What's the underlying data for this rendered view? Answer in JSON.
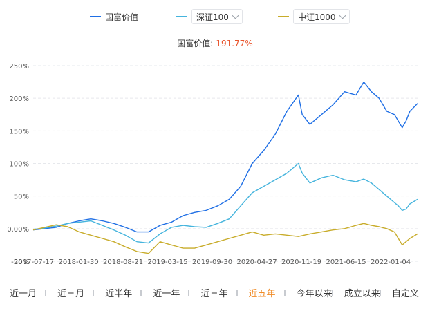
{
  "legend": {
    "main": {
      "label": "国富价值",
      "color": "#1f6fe5"
    },
    "compare1": {
      "label": "深证100",
      "color": "#45b4dd"
    },
    "compare2": {
      "label": "中证1000",
      "color": "#c8ac2a"
    }
  },
  "summary": {
    "label": "国富价值:",
    "value": "191.77%"
  },
  "range_tabs": [
    "近一月",
    "近三月",
    "近半年",
    "近一年",
    "近三年",
    "近五年",
    "今年以来",
    "成立以来",
    "自定义"
  ],
  "active_tab": "近五年",
  "chart_data": {
    "type": "line",
    "x_ticks": [
      "2017-07-17",
      "2018-01-30",
      "2018-08-21",
      "2019-03-15",
      "2019-09-30",
      "2020-04-27",
      "2020-11-19",
      "2021-06-15",
      "2022-01-04"
    ],
    "y_ticks": [
      "250%",
      "200%",
      "150%",
      "100%",
      "50%",
      "0.00%",
      "-50%"
    ],
    "ylim": [
      -50,
      250
    ],
    "grid": true,
    "series": [
      {
        "name": "国富价值",
        "color": "#1f6fe5",
        "points": [
          [
            0,
            -2
          ],
          [
            3,
            0
          ],
          [
            6,
            2
          ],
          [
            9,
            8
          ],
          [
            12,
            12
          ],
          [
            15,
            15
          ],
          [
            18,
            12
          ],
          [
            21,
            8
          ],
          [
            24,
            2
          ],
          [
            27,
            -5
          ],
          [
            30,
            -5
          ],
          [
            33,
            5
          ],
          [
            36,
            10
          ],
          [
            39,
            20
          ],
          [
            42,
            25
          ],
          [
            45,
            28
          ],
          [
            48,
            35
          ],
          [
            51,
            45
          ],
          [
            54,
            65
          ],
          [
            57,
            100
          ],
          [
            60,
            120
          ],
          [
            63,
            145
          ],
          [
            66,
            180
          ],
          [
            69,
            205
          ],
          [
            70,
            175
          ],
          [
            72,
            160
          ],
          [
            75,
            175
          ],
          [
            78,
            190
          ],
          [
            81,
            210
          ],
          [
            84,
            205
          ],
          [
            86,
            225
          ],
          [
            88,
            210
          ],
          [
            90,
            200
          ],
          [
            92,
            180
          ],
          [
            94,
            175
          ],
          [
            95,
            165
          ],
          [
            96,
            155
          ],
          [
            97,
            165
          ],
          [
            98,
            180
          ],
          [
            100,
            192
          ]
        ]
      },
      {
        "name": "深证100",
        "color": "#45b4dd",
        "points": [
          [
            0,
            -1
          ],
          [
            3,
            1
          ],
          [
            6,
            4
          ],
          [
            9,
            8
          ],
          [
            12,
            10
          ],
          [
            15,
            12
          ],
          [
            18,
            5
          ],
          [
            21,
            -2
          ],
          [
            24,
            -10
          ],
          [
            27,
            -20
          ],
          [
            30,
            -22
          ],
          [
            33,
            -8
          ],
          [
            36,
            2
          ],
          [
            39,
            5
          ],
          [
            42,
            3
          ],
          [
            45,
            2
          ],
          [
            48,
            8
          ],
          [
            51,
            15
          ],
          [
            54,
            35
          ],
          [
            57,
            55
          ],
          [
            60,
            65
          ],
          [
            63,
            75
          ],
          [
            66,
            85
          ],
          [
            69,
            100
          ],
          [
            70,
            85
          ],
          [
            72,
            70
          ],
          [
            75,
            78
          ],
          [
            78,
            82
          ],
          [
            81,
            75
          ],
          [
            84,
            72
          ],
          [
            86,
            76
          ],
          [
            88,
            70
          ],
          [
            90,
            60
          ],
          [
            92,
            50
          ],
          [
            94,
            40
          ],
          [
            95,
            35
          ],
          [
            96,
            28
          ],
          [
            97,
            30
          ],
          [
            98,
            38
          ],
          [
            100,
            45
          ]
        ]
      },
      {
        "name": "中证1000",
        "color": "#c8ac2a",
        "points": [
          [
            0,
            -2
          ],
          [
            3,
            2
          ],
          [
            6,
            6
          ],
          [
            9,
            3
          ],
          [
            12,
            -5
          ],
          [
            15,
            -10
          ],
          [
            18,
            -15
          ],
          [
            21,
            -20
          ],
          [
            24,
            -28
          ],
          [
            27,
            -35
          ],
          [
            30,
            -38
          ],
          [
            33,
            -20
          ],
          [
            36,
            -25
          ],
          [
            39,
            -30
          ],
          [
            42,
            -30
          ],
          [
            45,
            -25
          ],
          [
            48,
            -20
          ],
          [
            51,
            -15
          ],
          [
            54,
            -10
          ],
          [
            57,
            -5
          ],
          [
            60,
            -10
          ],
          [
            63,
            -8
          ],
          [
            66,
            -10
          ],
          [
            69,
            -12
          ],
          [
            72,
            -8
          ],
          [
            75,
            -5
          ],
          [
            78,
            -2
          ],
          [
            81,
            0
          ],
          [
            84,
            5
          ],
          [
            86,
            8
          ],
          [
            88,
            5
          ],
          [
            90,
            3
          ],
          [
            92,
            0
          ],
          [
            94,
            -5
          ],
          [
            95,
            -15
          ],
          [
            96,
            -25
          ],
          [
            97,
            -20
          ],
          [
            98,
            -15
          ],
          [
            100,
            -8
          ]
        ]
      }
    ]
  }
}
